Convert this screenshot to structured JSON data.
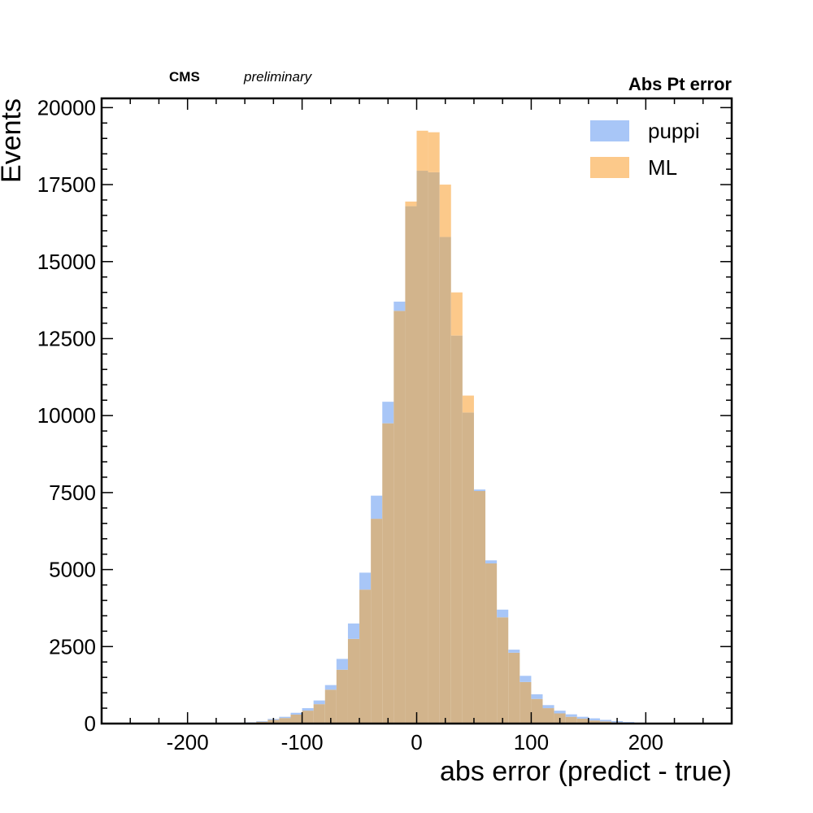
{
  "chart_data": {
    "type": "bar",
    "histogram": true,
    "title": "Abs Pt error",
    "experiment_label": "CMS",
    "status_label": "preliminary",
    "xlabel": "abs error (predict - true)",
    "ylabel": "Events",
    "xlim": [
      -275,
      275
    ],
    "ylim": [
      0,
      20300
    ],
    "xticks": [
      -200,
      -100,
      0,
      100,
      200
    ],
    "yticks": [
      0,
      2500,
      5000,
      7500,
      10000,
      12500,
      15000,
      17500,
      20000
    ],
    "bin_edges": [
      -250,
      -240,
      -230,
      -220,
      -210,
      -200,
      -190,
      -180,
      -170,
      -160,
      -150,
      -140,
      -130,
      -120,
      -110,
      -100,
      -90,
      -80,
      -70,
      -60,
      -50,
      -40,
      -30,
      -20,
      -10,
      0,
      10,
      20,
      30,
      40,
      50,
      60,
      70,
      80,
      90,
      100,
      110,
      120,
      130,
      140,
      150,
      160,
      170,
      180,
      190,
      200,
      210,
      220,
      230,
      240,
      250
    ],
    "legend_position": "top-right",
    "overlap_color": "#d2b48c",
    "series": [
      {
        "name": "puppi",
        "color": "#a8c6f7",
        "values": [
          0,
          0,
          0,
          0,
          0,
          0,
          0,
          5,
          10,
          20,
          40,
          80,
          150,
          220,
          350,
          500,
          750,
          1250,
          2100,
          3250,
          4900,
          7400,
          10450,
          13700,
          16800,
          17950,
          17900,
          15800,
          12600,
          10100,
          7600,
          5300,
          3700,
          2400,
          1550,
          950,
          600,
          420,
          300,
          220,
          170,
          120,
          80,
          50,
          30,
          20,
          10,
          5,
          0,
          0
        ]
      },
      {
        "name": "ML",
        "color": "#fcc98a",
        "values": [
          0,
          0,
          0,
          0,
          0,
          0,
          0,
          5,
          10,
          20,
          30,
          60,
          120,
          180,
          290,
          420,
          630,
          1100,
          1750,
          2750,
          4350,
          6650,
          9750,
          13400,
          16950,
          19250,
          19200,
          17500,
          14000,
          10650,
          7550,
          5200,
          3450,
          2300,
          1350,
          800,
          500,
          330,
          220,
          160,
          100,
          70,
          40,
          25,
          15,
          10,
          5,
          0,
          0,
          0
        ]
      }
    ]
  }
}
